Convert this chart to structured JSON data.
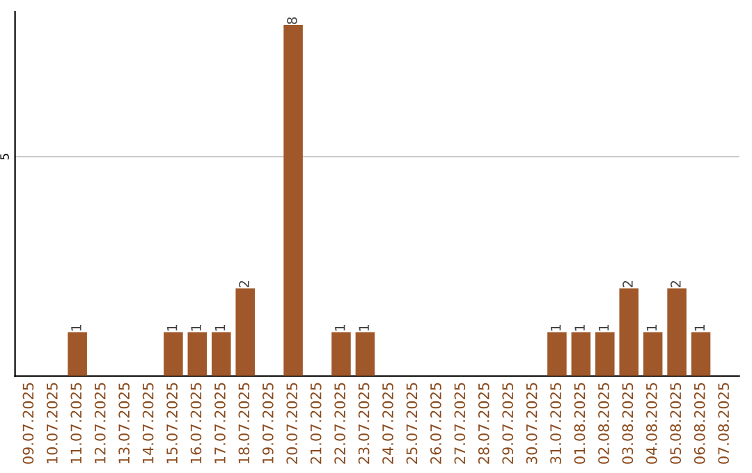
{
  "chart_data": {
    "type": "bar",
    "categories": [
      "09.07.2025",
      "10.07.2025",
      "11.07.2025",
      "12.07.2025",
      "13.07.2025",
      "14.07.2025",
      "15.07.2025",
      "16.07.2025",
      "17.07.2025",
      "18.07.2025",
      "19.07.2025",
      "20.07.2025",
      "21.07.2025",
      "22.07.2025",
      "23.07.2025",
      "24.07.2025",
      "25.07.2025",
      "26.07.2025",
      "27.07.2025",
      "28.07.2025",
      "29.07.2025",
      "30.07.2025",
      "31.07.2025",
      "01.08.2025",
      "02.08.2025",
      "03.08.2025",
      "04.08.2025",
      "05.08.2025",
      "06.08.2025",
      "07.08.2025"
    ],
    "values": [
      0,
      0,
      1,
      0,
      0,
      0,
      1,
      1,
      1,
      2,
      0,
      8,
      0,
      1,
      1,
      0,
      0,
      0,
      0,
      0,
      0,
      0,
      1,
      1,
      1,
      2,
      1,
      2,
      1,
      0
    ],
    "value_labels": [
      null,
      null,
      "1",
      null,
      null,
      null,
      "1",
      "1",
      "1",
      "2",
      null,
      "8",
      null,
      "1",
      "1",
      null,
      null,
      null,
      null,
      null,
      null,
      null,
      "1",
      "1",
      "1",
      "2",
      "1",
      "2",
      "1",
      null
    ],
    "color": "#a0582a",
    "ylim": [
      0,
      8.3
    ],
    "yticks": [
      5
    ],
    "grid": "y",
    "legend": false
  }
}
